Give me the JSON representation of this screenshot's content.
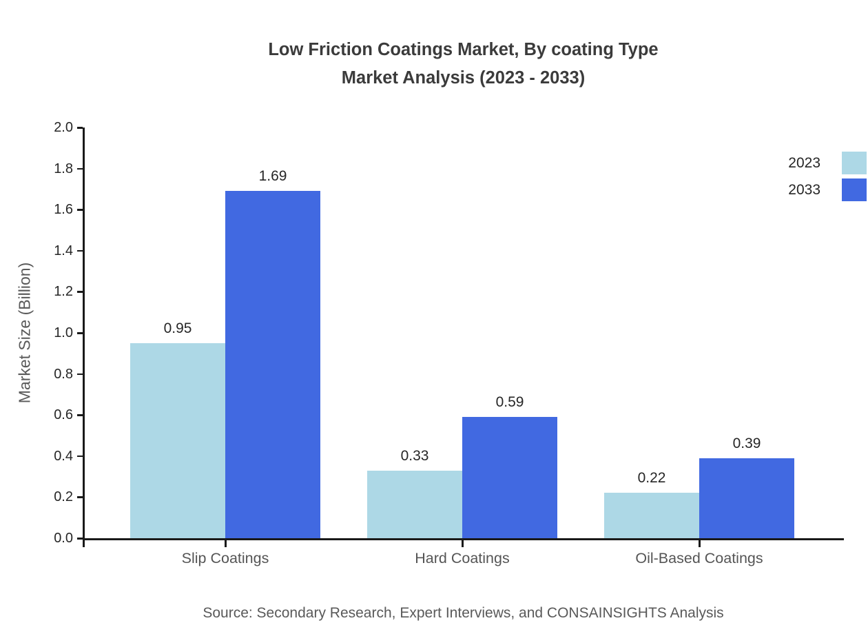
{
  "title": {
    "line1": "Low Friction Coatings Market, By coating Type",
    "line2": "Market Analysis (2023 - 2033)"
  },
  "source": "Source: Secondary Research, Expert Interviews, and CONSAINSIGHTS Analysis",
  "chart_data": {
    "type": "bar",
    "title": "Low Friction Coatings Market, By coating Type\nMarket Analysis (2023 - 2033)",
    "categories": [
      "Slip Coatings",
      "Hard Coatings",
      "Oil-Based Coatings"
    ],
    "series": [
      {
        "name": "2023",
        "color": "#ADD8E6",
        "values": [
          0.95,
          0.33,
          0.22
        ]
      },
      {
        "name": "2033",
        "color": "#4169E1",
        "values": [
          1.69,
          0.59,
          0.39
        ]
      }
    ],
    "xlabel": "",
    "ylabel": "Market Size (Billion)",
    "ylim": [
      0.0,
      2.0
    ],
    "ytick_step": 0.2,
    "ytick_labels": [
      "0.0",
      "0.2",
      "0.4",
      "0.6",
      "0.8",
      "1.0",
      "1.2",
      "1.4",
      "1.6",
      "1.8",
      "2.0"
    ],
    "grid": false,
    "value_labels": true,
    "legend_position": "upper-right-outside",
    "legend_marker_side": "right-of-label",
    "axis_color": "#1a1a1a",
    "title_color": "#3b3b3b",
    "tick_label_color": "#262626",
    "category_label_color": "#555555",
    "source_color": "#595959"
  }
}
